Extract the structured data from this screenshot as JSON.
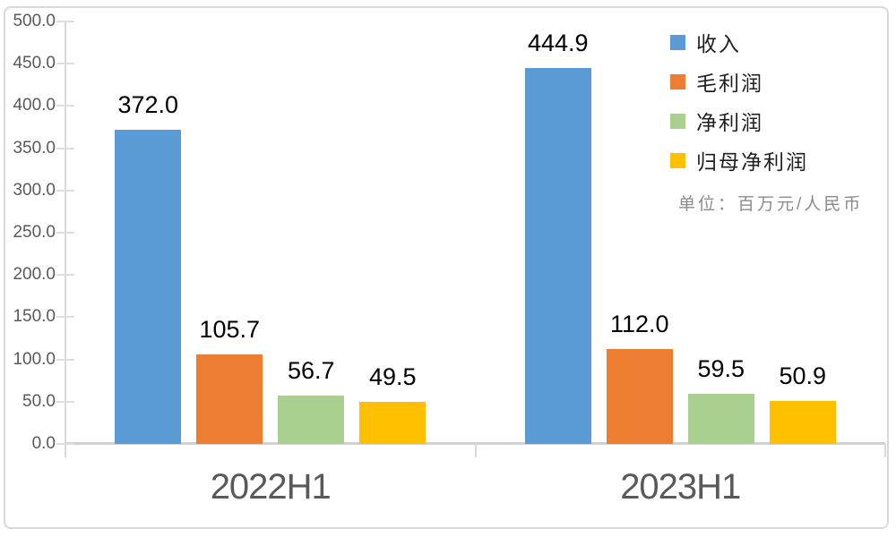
{
  "chart_data": {
    "type": "bar",
    "title": "",
    "categories": [
      "2022H1",
      "2023H1"
    ],
    "series": [
      {
        "name": "收入",
        "key": "revenue",
        "color": "#5B9BD5",
        "values": [
          372.0,
          444.9
        ],
        "labels": [
          "372.0",
          "444.9"
        ]
      },
      {
        "name": "毛利润",
        "key": "gross-profit",
        "color": "#ED7D31",
        "values": [
          105.7,
          112.0
        ],
        "labels": [
          "105.7",
          "112.0"
        ]
      },
      {
        "name": "净利润",
        "key": "net-profit",
        "color": "#A9D08E",
        "values": [
          56.7,
          59.5
        ],
        "labels": [
          "56.7",
          "59.5"
        ]
      },
      {
        "name": "归母净利润",
        "key": "parent-net-profit",
        "color": "#FFC000",
        "values": [
          49.5,
          50.9
        ],
        "labels": [
          "49.5",
          "50.9"
        ]
      }
    ],
    "y_axis": {
      "min": 0,
      "max": 500,
      "step": 50,
      "tick_labels": [
        "500.0",
        "450.0",
        "400.0",
        "350.0",
        "300.0",
        "250.0",
        "200.0",
        "150.0",
        "100.0",
        "50.0",
        "0.0"
      ]
    },
    "x_axis": {
      "tick_labels": [
        "2022H1",
        "2023H1"
      ]
    },
    "legend": {
      "position": "top-right",
      "orientation": "vertical"
    },
    "unit_note": "单位：百万元/人民币",
    "grid": "off",
    "data_labels": "above-bars",
    "frame_color": "#D9D9D9",
    "axis_color": "#D9D9D9",
    "label_color": "#595959"
  }
}
